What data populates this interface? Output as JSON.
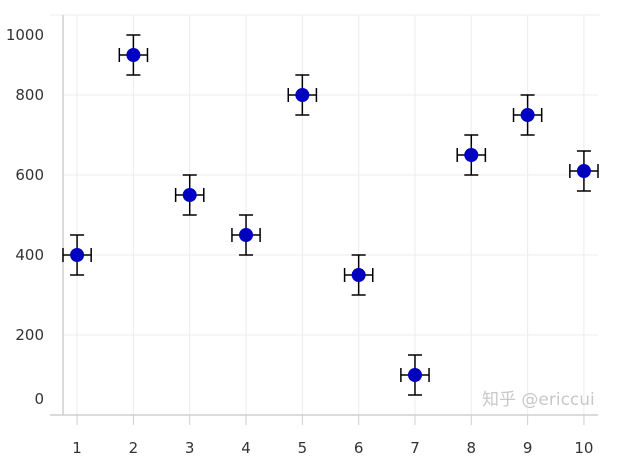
{
  "chart_data": {
    "type": "scatter",
    "title": "",
    "xlabel": "",
    "ylabel": "",
    "x": [
      1,
      2,
      3,
      4,
      5,
      6,
      7,
      8,
      9,
      10
    ],
    "y": [
      400,
      900,
      550,
      450,
      800,
      350,
      100,
      650,
      750,
      610
    ],
    "y_error": 50,
    "x_error": 0.25,
    "xlim": [
      0.75,
      10.25
    ],
    "ylim": [
      0,
      1000
    ],
    "x_ticks": [
      "1",
      "2",
      "3",
      "4",
      "5",
      "6",
      "7",
      "8",
      "9",
      "10"
    ],
    "y_ticks": [
      "0",
      "200",
      "400",
      "600",
      "800",
      "1000"
    ],
    "grid": true,
    "marker_color": "#0000c0",
    "errorbar_color": "#000000"
  },
  "watermark": "知乎 @ericcui"
}
